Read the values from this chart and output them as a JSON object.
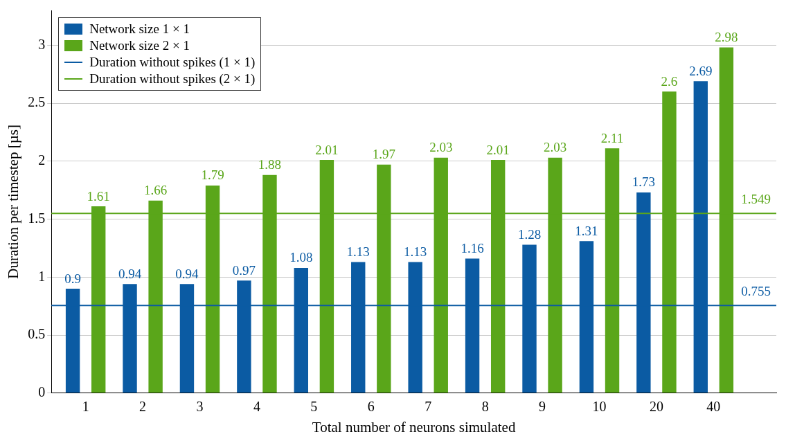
{
  "chart_data": {
    "type": "bar",
    "xlabel": "Total number of neurons simulated",
    "ylabel": "Duration per timestep [µs]",
    "categories": [
      "1",
      "2",
      "3",
      "4",
      "5",
      "6",
      "7",
      "8",
      "9",
      "10",
      "20",
      "40"
    ],
    "series": [
      {
        "name": "Network size 1 × 1",
        "color": "#0b5ba3",
        "values": [
          0.9,
          0.94,
          0.94,
          0.97,
          1.08,
          1.13,
          1.13,
          1.16,
          1.28,
          1.31,
          1.73,
          2.69
        ]
      },
      {
        "name": "Network size 2 × 1",
        "color": "#5aa61a",
        "values": [
          1.61,
          1.66,
          1.79,
          1.88,
          2.01,
          1.97,
          2.03,
          2.01,
          2.03,
          2.11,
          2.6,
          2.98
        ]
      }
    ],
    "ref_lines": [
      {
        "axis": "y",
        "value": 0.755,
        "label": "Duration without spikes (1 × 1)",
        "color": "#0b5ba3"
      },
      {
        "axis": "y",
        "value": 1.549,
        "label": "Duration without spikes (2 × 1)",
        "color": "#5aa61a"
      }
    ],
    "annotations": [
      {
        "text": "0.755",
        "y": 0.755
      },
      {
        "text": "1.549",
        "y": 1.549
      }
    ],
    "ylim": [
      0,
      3.3
    ],
    "yticks": [
      0,
      0.5,
      1,
      1.5,
      2,
      2.5,
      3
    ],
    "grid": "y",
    "legend": "top left",
    "data_labels": true
  }
}
